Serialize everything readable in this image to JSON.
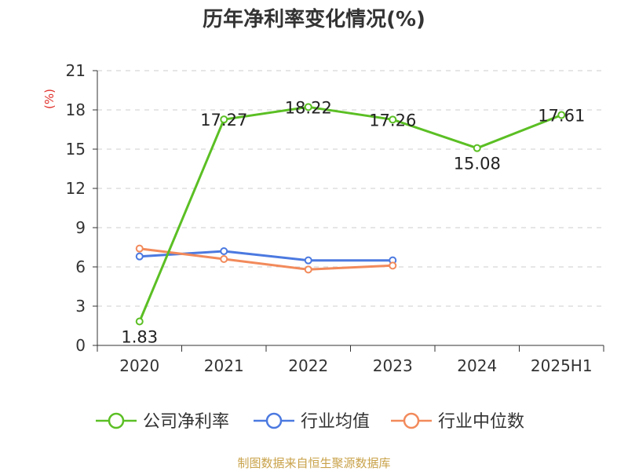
{
  "chart_data": {
    "type": "line",
    "title": "历年净利率变化情况(%)",
    "ylabel": "(%)",
    "xlabel": "",
    "categories": [
      "2020",
      "2021",
      "2022",
      "2023",
      "2024",
      "2025H1"
    ],
    "ylim": [
      0,
      21
    ],
    "yticks": [
      0,
      3,
      6,
      9,
      12,
      15,
      18,
      21
    ],
    "grid": true,
    "legend_position": "bottom",
    "series": [
      {
        "name": "公司净利率",
        "color": "#5bbf24",
        "values": [
          1.83,
          17.27,
          18.22,
          17.26,
          15.08,
          17.61
        ],
        "data_labels": [
          "1.83",
          "17.27",
          "18.22",
          "17.26",
          "15.08",
          "17.61"
        ]
      },
      {
        "name": "行业均值",
        "color": "#4b79e0",
        "values": [
          6.8,
          7.2,
          6.5,
          6.5,
          null,
          null
        ],
        "data_labels": []
      },
      {
        "name": "行业中位数",
        "color": "#f28a5b",
        "values": [
          7.4,
          6.6,
          5.8,
          6.1,
          null,
          null
        ],
        "data_labels": []
      }
    ],
    "unit_color": "#e0302a",
    "source": "制图数据来自恒生聚源数据库",
    "source_color": "#c9a24a"
  }
}
